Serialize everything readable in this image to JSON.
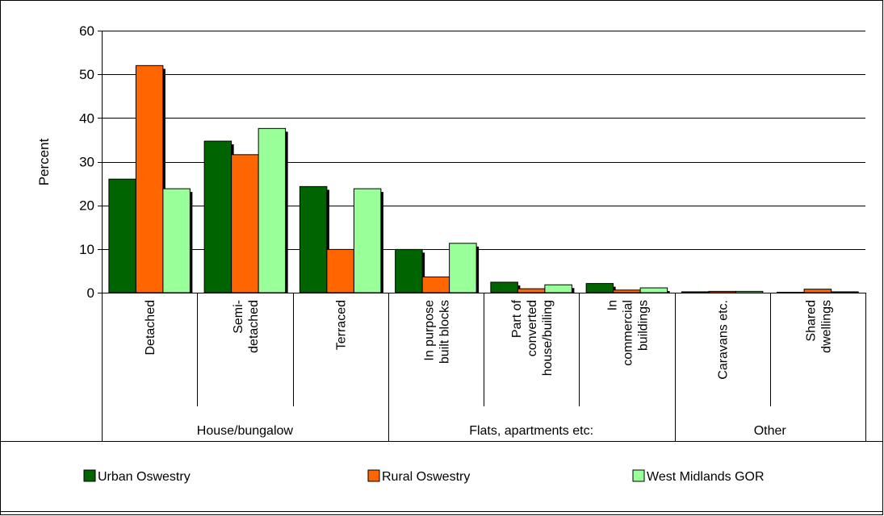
{
  "colors": {
    "frame": "#000000",
    "gridline": "#000000",
    "shadow": "#000000",
    "series": [
      "#006400",
      "#ff6600",
      "#99ff99"
    ]
  },
  "chart_data": {
    "type": "bar",
    "ylabel": "Percent",
    "ylim": [
      0,
      60
    ],
    "yticks": [
      0,
      10,
      20,
      30,
      40,
      50,
      60
    ],
    "grid": true,
    "legend_position": "bottom",
    "categories": [
      "Detached",
      "Semi-\ndetached",
      "Terraced",
      "In purpose\nbuilt blocks",
      "Part of\nconverted\nhouse/builing",
      "In\ncommercial\nbuildings",
      "Caravans etc.",
      "Shared\ndwellings"
    ],
    "groups": [
      {
        "label": "House/bungalow",
        "span": 3
      },
      {
        "label": "Flats, apartments etc:",
        "span": 3
      },
      {
        "label": "Other",
        "span": 2
      }
    ],
    "series": [
      {
        "name": "Urban Oswestry",
        "values": [
          26.0,
          34.7,
          24.3,
          9.9,
          2.4,
          2.1,
          0.2,
          0.1
        ]
      },
      {
        "name": "Rural Oswestry",
        "values": [
          52.0,
          31.6,
          9.9,
          3.6,
          0.9,
          0.6,
          0.3,
          0.8
        ]
      },
      {
        "name": "West Midlands GOR",
        "values": [
          23.8,
          37.6,
          23.8,
          11.3,
          1.8,
          1.1,
          0.3,
          0.2
        ]
      }
    ]
  }
}
